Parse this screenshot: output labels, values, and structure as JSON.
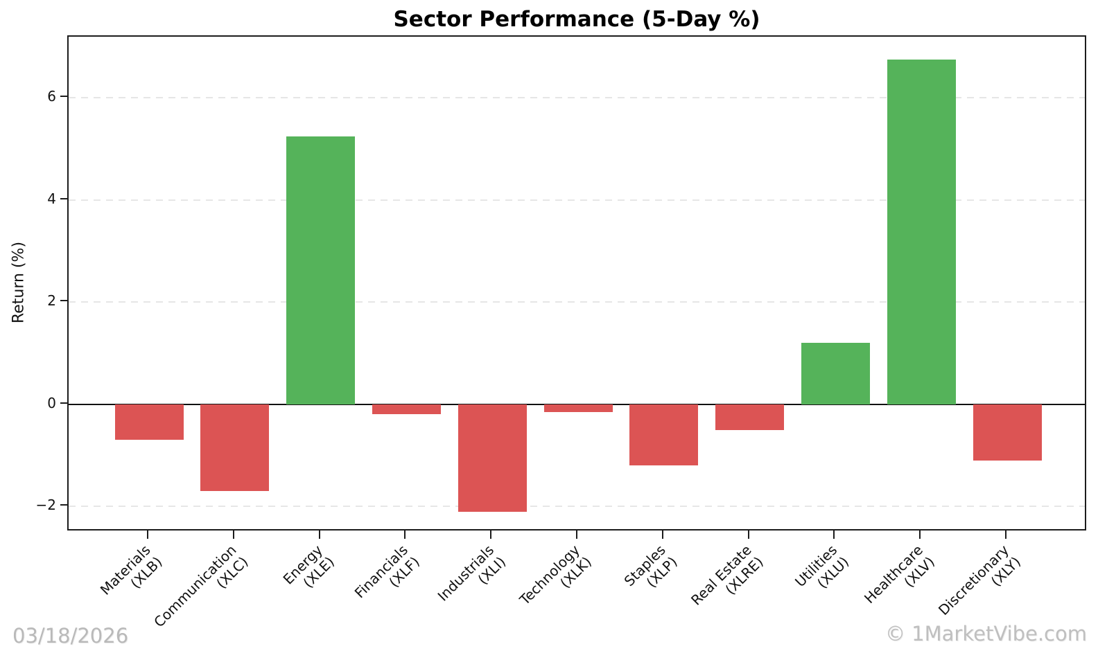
{
  "title": "Sector Performance (5-Day %)",
  "footer": {
    "date": "03/18/2026",
    "copyright": "© 1MarketVibe.com"
  },
  "chart_data": {
    "type": "bar",
    "title": "Sector Performance (5-Day %)",
    "xlabel": "",
    "ylabel": "Return (%)",
    "categories": [
      {
        "label": "Materials",
        "ticker": "(XLB)"
      },
      {
        "label": "Communication",
        "ticker": "(XLC)"
      },
      {
        "label": "Energy",
        "ticker": "(XLE)"
      },
      {
        "label": "Financials",
        "ticker": "(XLF)"
      },
      {
        "label": "Industrials",
        "ticker": "(XLI)"
      },
      {
        "label": "Technology",
        "ticker": "(XLK)"
      },
      {
        "label": "Staples",
        "ticker": "(XLP)"
      },
      {
        "label": "Real Estate",
        "ticker": "(XLRE)"
      },
      {
        "label": "Utilities",
        "ticker": "(XLU)"
      },
      {
        "label": "Healthcare",
        "ticker": "(XLV)"
      },
      {
        "label": "Discretionary",
        "ticker": "(XLY)"
      }
    ],
    "values": [
      -0.7,
      -1.7,
      5.25,
      -0.2,
      -2.1,
      -0.15,
      -1.2,
      -0.5,
      1.2,
      6.75,
      -1.1
    ],
    "yticks": [
      -2,
      0,
      2,
      4,
      6
    ],
    "ylim": [
      -2.5,
      7.2
    ],
    "grid": "horizontal-dashed",
    "zero_line": true,
    "legend": "none",
    "colors": {
      "positive": "#55b35a",
      "negative": "#dc5454",
      "gridline": "#e6e6e6",
      "axis": "#1c1c1c",
      "watermark": "#b9b9b9"
    }
  }
}
